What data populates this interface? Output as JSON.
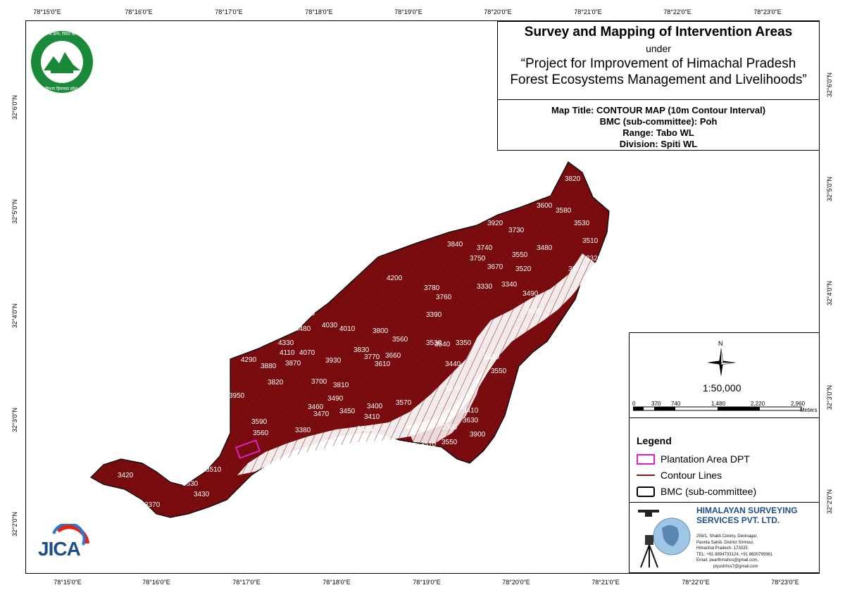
{
  "graticule": {
    "top": [
      "78°15'0\"E",
      "78°16'0\"E",
      "78°17'0\"E",
      "78°18'0\"E",
      "78°19'0\"E",
      "78°20'0\"E",
      "78°21'0\"E",
      "78°22'0\"E",
      "78°23'0\"E"
    ],
    "bottom": [
      "78°15'0\"E",
      "78°16'0\"E",
      "78°17'0\"E",
      "78°18'0\"E",
      "78°19'0\"E",
      "78°20'0\"E",
      "78°21'0\"E",
      "78°22'0\"E",
      "78°23'0\"E"
    ],
    "left": [
      "32°6'0\"N",
      "32°5'0\"N",
      "32°4'0\"N",
      "32°3'0\"N",
      "32°2'0\"N"
    ],
    "right": [
      "32°6'0\"N",
      "32°5'0\"N",
      "32°4'0\"N",
      "32°3'0\"N",
      "32°2'0\"N"
    ]
  },
  "title": {
    "main": "Survey and Mapping of Intervention Areas",
    "under": "under",
    "project_line1": "“Project for Improvement of Himachal Pradesh",
    "project_line2": "Forest Ecosystems Management and Livelihoods”"
  },
  "info": {
    "map_title": "Map Title: CONTOUR MAP (10m Contour Interval)",
    "bmc": "BMC (sub-committee): Poh",
    "range": "Range: Tabo WL",
    "division": "Division: Spiti WL"
  },
  "scale": {
    "north": "N",
    "ratio": "1:50,000",
    "ticks": [
      "0",
      "370",
      "740",
      "1,480",
      "2,220",
      "2,960"
    ],
    "unit": "Meters"
  },
  "legend": {
    "title": "Legend",
    "items": [
      {
        "label": "Plantation Area DPT",
        "color": "#e020c0"
      },
      {
        "label": "Contour Lines",
        "color": "#8b1a1a"
      },
      {
        "label": "BMC (sub-committee)",
        "color": "#000000"
      }
    ]
  },
  "company": {
    "name_line1": "HIMALAYAN SURVEYING",
    "name_line2": "SERVICES PVT. LTD.",
    "address_line1": "259/1, Shakti Colony, Devinagar,",
    "address_line2": "Paonta Sahib, District Sirmour,",
    "address_line3": "Himachal Pradesh- 173025",
    "tel": "TEL: +91 8894733124, +91 8630799361",
    "email1": "Email: pearthmahss@gmail.com,",
    "email2": "piyushhss7@gmail.com"
  },
  "logos": {
    "forest_dept_text_top": "वन थी प्राण, विराट बल्याण",
    "forest_dept_text_bottom": "वन विभाग हिमाचल प्रदेश",
    "jica": "JICA"
  },
  "colors": {
    "terrain": "#7a0c0f",
    "contour": "#8b1a1a",
    "company_blue": "#1f4e8c",
    "forest_green": "#1a8a3a"
  },
  "contour_labels": [
    "3820",
    "3600",
    "3580",
    "3530",
    "3510",
    "3920",
    "3730",
    "3840",
    "3740",
    "3750",
    "3550",
    "3480",
    "3320",
    "3670",
    "3520",
    "3370",
    "4200",
    "3780",
    "3760",
    "3330",
    "3340",
    "3490",
    "3480",
    "3390",
    "4170",
    "4030",
    "4010",
    "3800",
    "3560",
    "3530",
    "3540",
    "3350",
    "4480",
    "4330",
    "4110",
    "4070",
    "3830",
    "3770",
    "3660",
    "3610",
    "3440",
    "4290",
    "3880",
    "3870",
    "3930",
    "3380",
    "3550",
    "3820",
    "3700",
    "3810",
    "3340",
    "3950",
    "3460",
    "3490",
    "3570",
    "3470",
    "3450",
    "3400",
    "3410",
    "3410",
    "3590",
    "3560",
    "3380",
    "3380",
    "3360",
    "3630",
    "3510",
    "3550",
    "3900",
    "3420",
    "3510",
    "3630",
    "3430",
    "3370"
  ]
}
